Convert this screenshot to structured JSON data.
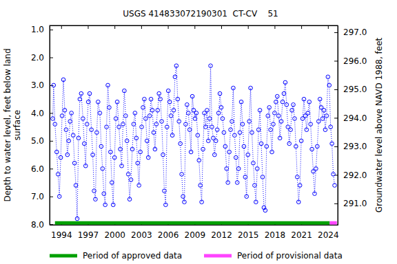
{
  "chart_data": {
    "type": "scatter",
    "title": "USGS 414833072190301  CT-CV    51",
    "y_label": [
      "Depth to water level, feet below land",
      "surface"
    ],
    "y2_label": "Groundwater level above NAVD 1988, feet",
    "xlim": [
      1992.7,
      2025.1
    ],
    "xticks": [
      1994,
      1997,
      2000,
      2003,
      2006,
      2009,
      2012,
      2015,
      2018,
      2021,
      2024
    ],
    "ylim": [
      8.02,
      0.85
    ],
    "yticks": [
      {
        "value": 1,
        "label": "1.0"
      },
      {
        "value": 2,
        "label": "2.0"
      },
      {
        "value": 3,
        "label": "3.0"
      },
      {
        "value": 4,
        "label": "4.0"
      },
      {
        "value": 5,
        "label": "5.0"
      },
      {
        "value": 6,
        "label": "6.0"
      },
      {
        "value": 7,
        "label": "7.0"
      },
      {
        "value": 8,
        "label": "8.0"
      }
    ],
    "y2lim": [
      290.25,
      297.24
    ],
    "y2ticks": [
      {
        "value": 291,
        "label": "291.0"
      },
      {
        "value": 292,
        "label": "292.0"
      },
      {
        "value": 293,
        "label": "293.0"
      },
      {
        "value": 294,
        "label": "294.0"
      },
      {
        "value": 295,
        "label": "295.0"
      },
      {
        "value": 296,
        "label": "296.0"
      },
      {
        "value": 297,
        "label": "297.0"
      }
    ],
    "grid": false,
    "legend": "bottom",
    "series": [
      {
        "type": "scatter",
        "color": "#0000ff",
        "marker": "circle",
        "line_style": "dotted",
        "x": [
          1993.05,
          1993.15,
          1993.3,
          1993.5,
          1993.65,
          1993.8,
          1993.95,
          1994.1,
          1994.25,
          1994.4,
          1994.55,
          1994.7,
          1994.85,
          1995.0,
          1995.15,
          1995.35,
          1995.5,
          1995.65,
          1995.8,
          1995.95,
          1996.1,
          1996.25,
          1996.45,
          1996.6,
          1996.75,
          1996.9,
          1997.05,
          1997.2,
          1997.4,
          1997.55,
          1997.7,
          1997.85,
          1998.0,
          1998.15,
          1998.35,
          1998.5,
          1998.65,
          1998.8,
          1998.95,
          1999.1,
          1999.25,
          1999.4,
          1999.55,
          1999.7,
          1999.85,
          2000.0,
          2000.15,
          2000.3,
          2000.5,
          2000.65,
          2000.8,
          2000.95,
          2001.1,
          2001.25,
          2001.4,
          2001.55,
          2001.7,
          2001.85,
          2002.0,
          2002.15,
          2002.3,
          2002.45,
          2002.6,
          2002.75,
          2002.9,
          2003.05,
          2003.2,
          2003.35,
          2003.5,
          2003.65,
          2003.8,
          2003.95,
          2004.1,
          2004.25,
          2004.4,
          2004.55,
          2004.7,
          2004.85,
          2005.0,
          2005.15,
          2005.3,
          2005.45,
          2005.6,
          2005.75,
          2005.9,
          2006.05,
          2006.2,
          2006.35,
          2006.5,
          2006.65,
          2006.8,
          2006.95,
          2007.1,
          2007.25,
          2007.4,
          2007.55,
          2007.7,
          2007.85,
          2008.0,
          2008.15,
          2008.3,
          2008.45,
          2008.6,
          2008.75,
          2008.9,
          2009.05,
          2009.2,
          2009.35,
          2009.5,
          2009.65,
          2009.8,
          2009.95,
          2010.1,
          2010.25,
          2010.4,
          2010.55,
          2010.7,
          2010.8,
          2010.95,
          2011.1,
          2011.25,
          2011.4,
          2011.55,
          2011.7,
          2011.85,
          2012.0,
          2012.15,
          2012.3,
          2012.45,
          2012.6,
          2012.75,
          2012.9,
          2013.05,
          2013.2,
          2013.35,
          2013.5,
          2013.65,
          2013.8,
          2013.95,
          2014.1,
          2014.25,
          2014.4,
          2014.55,
          2014.7,
          2014.85,
          2015.0,
          2015.15,
          2015.3,
          2015.45,
          2015.6,
          2015.75,
          2015.9,
          2016.05,
          2016.2,
          2016.35,
          2016.5,
          2016.65,
          2016.8,
          2016.95,
          2017.1,
          2017.25,
          2017.4,
          2017.55,
          2017.7,
          2017.85,
          2018.0,
          2018.15,
          2018.3,
          2018.45,
          2018.6,
          2018.75,
          2018.9,
          2019.05,
          2019.2,
          2019.35,
          2019.5,
          2019.65,
          2019.8,
          2019.95,
          2020.1,
          2020.25,
          2020.4,
          2020.55,
          2020.7,
          2020.85,
          2021.0,
          2021.15,
          2021.3,
          2021.45,
          2021.6,
          2021.75,
          2021.9,
          2022.05,
          2022.2,
          2022.35,
          2022.5,
          2022.65,
          2022.8,
          2022.95,
          2023.1,
          2023.25,
          2023.4,
          2023.55,
          2023.7,
          2023.85,
          2024.0,
          2024.15,
          2024.3,
          2024.45,
          2024.6,
          2024.75
        ],
        "values": [
          4.2,
          3.0,
          4.4,
          5.4,
          6.2,
          7.0,
          5.6,
          4.1,
          2.8,
          3.9,
          4.6,
          5.5,
          5.0,
          4.3,
          4.0,
          4.8,
          5.8,
          6.6,
          7.8,
          4.9,
          3.5,
          3.3,
          4.2,
          5.1,
          5.9,
          4.4,
          3.6,
          3.3,
          4.6,
          5.5,
          6.8,
          7.1,
          4.7,
          3.6,
          4.0,
          5.2,
          6.0,
          6.9,
          7.3,
          4.5,
          3.0,
          3.8,
          5.4,
          6.5,
          7.3,
          5.6,
          4.2,
          3.6,
          4.5,
          5.3,
          5.9,
          4.4,
          3.2,
          4.1,
          5.0,
          6.2,
          7.1,
          6.4,
          5.3,
          4.4,
          4.0,
          4.9,
          5.8,
          6.6,
          5.4,
          4.5,
          3.8,
          3.5,
          4.2,
          5.0,
          5.6,
          4.1,
          3.5,
          3.9,
          4.7,
          5.3,
          4.4,
          3.9,
          3.3,
          3.5,
          4.3,
          5.5,
          6.8,
          7.3,
          4.5,
          3.2,
          3.6,
          4.1,
          4.8,
          3.9,
          2.7,
          2.3,
          3.5,
          4.3,
          5.1,
          6.2,
          7.0,
          7.2,
          4.4,
          3.7,
          4.0,
          4.6,
          5.4,
          3.4,
          3.9,
          4.2,
          4.0,
          4.8,
          5.7,
          6.6,
          7.2,
          5.3,
          4.0,
          4.5,
          3.9,
          5.0,
          4.2,
          2.3,
          4.5,
          4.9,
          5.5,
          5.0,
          4.6,
          4.0,
          3.3,
          3.8,
          4.2,
          4.7,
          5.2,
          6.0,
          6.5,
          5.4,
          4.6,
          4.3,
          3.1,
          4.8,
          5.6,
          6.5,
          6.0,
          4.7,
          3.6,
          4.4,
          5.2,
          6.3,
          7.0,
          5.5,
          4.3,
          3.1,
          4.7,
          5.8,
          6.6,
          7.2,
          6.0,
          4.6,
          3.9,
          5.1,
          6.3,
          7.4,
          7.5,
          5.2,
          4.1,
          3.8,
          4.6,
          5.4,
          4.4,
          4.0,
          3.6,
          3.4,
          4.1,
          4.9,
          4.3,
          3.6,
          3.3,
          2.9,
          3.7,
          4.5,
          5.1,
          4.6,
          3.9,
          3.7,
          4.2,
          5.2,
          6.3,
          7.2,
          6.6,
          5.0,
          4.2,
          3.5,
          4.1,
          4.6,
          4.0,
          3.6,
          4.4,
          5.3,
          6.1,
          6.9,
          6.0,
          5.2,
          4.3,
          3.5,
          3.8,
          4.2,
          3.9,
          4.6,
          4.1,
          2.7,
          3.0,
          4.5,
          5.1,
          6.2,
          6.6
        ]
      },
      {
        "name": "Period of approved data",
        "type": "line",
        "color": "#00a000",
        "line_style": "solid",
        "x": [
          1993.3,
          2024.2
        ],
        "values": [
          7.95,
          7.95
        ]
      },
      {
        "name": "Period of provisional data",
        "type": "line",
        "color": "#ff44ff",
        "line_style": "solid",
        "x": [
          2024.2,
          2025.0
        ],
        "values": [
          7.95,
          7.95
        ]
      }
    ]
  }
}
